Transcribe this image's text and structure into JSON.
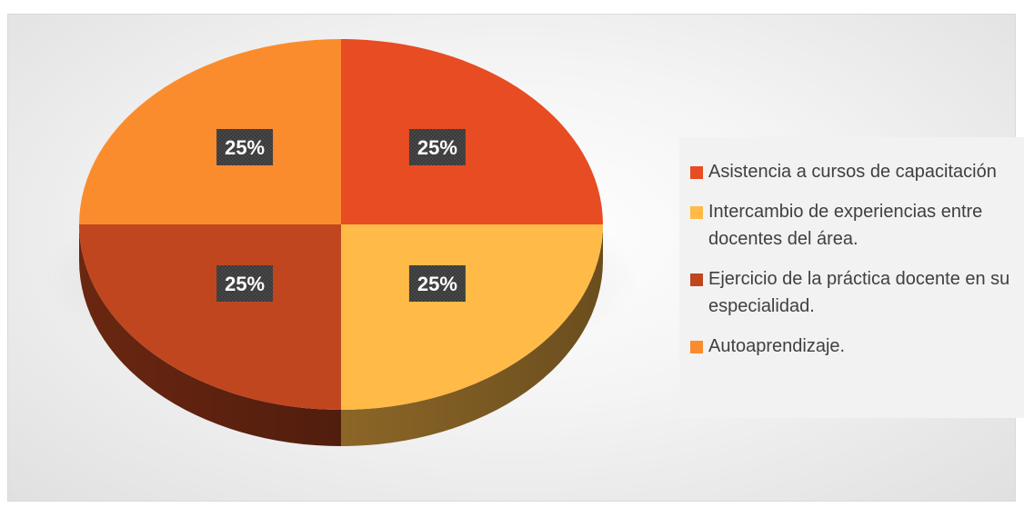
{
  "chart_data": {
    "type": "pie",
    "style": "3d",
    "categories": [
      "Asistencia a cursos de capacitación",
      "Intercambio de experiencias entre docentes del área.",
      "Ejercicio de la práctica docente en su especialidad.",
      "Autoaprendizaje."
    ],
    "values": [
      25,
      25,
      25,
      25
    ],
    "data_labels": [
      "25%",
      "25%",
      "25%",
      "25%"
    ],
    "colors": [
      "#E84C22",
      "#FFBA47",
      "#C0461F",
      "#FB8C2E"
    ],
    "legend_position": "right"
  }
}
